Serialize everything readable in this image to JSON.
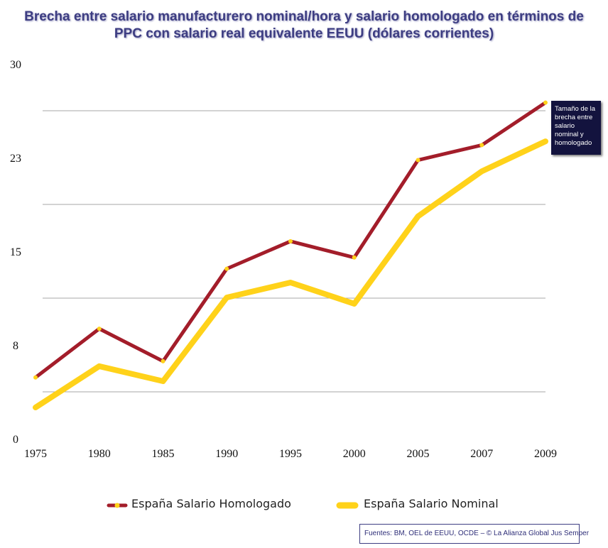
{
  "title": {
    "line1": "Brecha entre salario manufacturero nominal/hora y salario homologado en términos de",
    "line2": "PPC con salario real equivalente EEUU (dólares corrientes)"
  },
  "callout": "Tamaño de la brecha entre salario nominal y homologado",
  "sources": "Fuentes: BM, OEL de EEUU, OCDE – © La Alianza Global Jus Semper",
  "chart_data": {
    "type": "line",
    "categories": [
      "1975",
      "1980",
      "1985",
      "1990",
      "1995",
      "2000",
      "2005",
      "2007",
      "2009"
    ],
    "y_ticks": [
      "0",
      "8",
      "15",
      "23",
      "30"
    ],
    "ylim": [
      0,
      30
    ],
    "grid": true,
    "legend": "bottom",
    "series": [
      {
        "name": "España Salario Homologado",
        "color": "#a31d2a",
        "values": [
          4.9,
          8.8,
          6.2,
          13.6,
          15.8,
          14.5,
          22.3,
          23.5,
          26.9
        ]
      },
      {
        "name": "España Salario Nominal",
        "color": "#ffd21a",
        "values": [
          2.5,
          5.8,
          4.6,
          11.3,
          12.5,
          10.8,
          17.8,
          21.4,
          23.8
        ]
      }
    ]
  }
}
